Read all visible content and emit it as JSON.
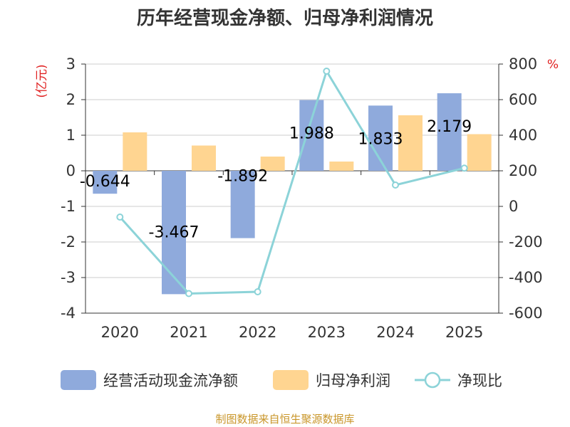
{
  "chart_data": {
    "type": "bar",
    "title": "历年经营现金净额、归母净利润情况",
    "categories": [
      "2020",
      "2021",
      "2022",
      "2023",
      "2024",
      "2025"
    ],
    "left_axis": {
      "unit": "(亿元)",
      "ylim": [
        -4,
        3
      ],
      "ticks": [
        3,
        2,
        1,
        0,
        -1,
        -2,
        -3,
        -4
      ]
    },
    "right_axis": {
      "unit": "%",
      "ylim": [
        -600,
        800
      ],
      "ticks": [
        800,
        600,
        400,
        200,
        0,
        -200,
        -400,
        -600
      ]
    },
    "series": [
      {
        "name": "经营活动现金流净额",
        "type": "bar",
        "axis": "left",
        "color": "#8faadc",
        "values": [
          -0.644,
          -3.467,
          -1.892,
          1.988,
          1.833,
          2.179
        ],
        "labels": [
          "-0.644",
          "-3.467",
          "-1.892",
          "1.988",
          "1.833",
          "2.179"
        ]
      },
      {
        "name": "归母净利润",
        "type": "bar",
        "axis": "left",
        "color": "#ffd591",
        "values": [
          1.08,
          0.71,
          0.4,
          0.26,
          1.56,
          1.03
        ]
      },
      {
        "name": "净现比",
        "type": "line",
        "axis": "right",
        "color": "#8cd3d8",
        "values": [
          -60,
          -490,
          -480,
          760,
          120,
          215
        ]
      }
    ],
    "grid": true,
    "legend_position": "bottom"
  },
  "source": "制图数据来自恒生聚源数据库"
}
